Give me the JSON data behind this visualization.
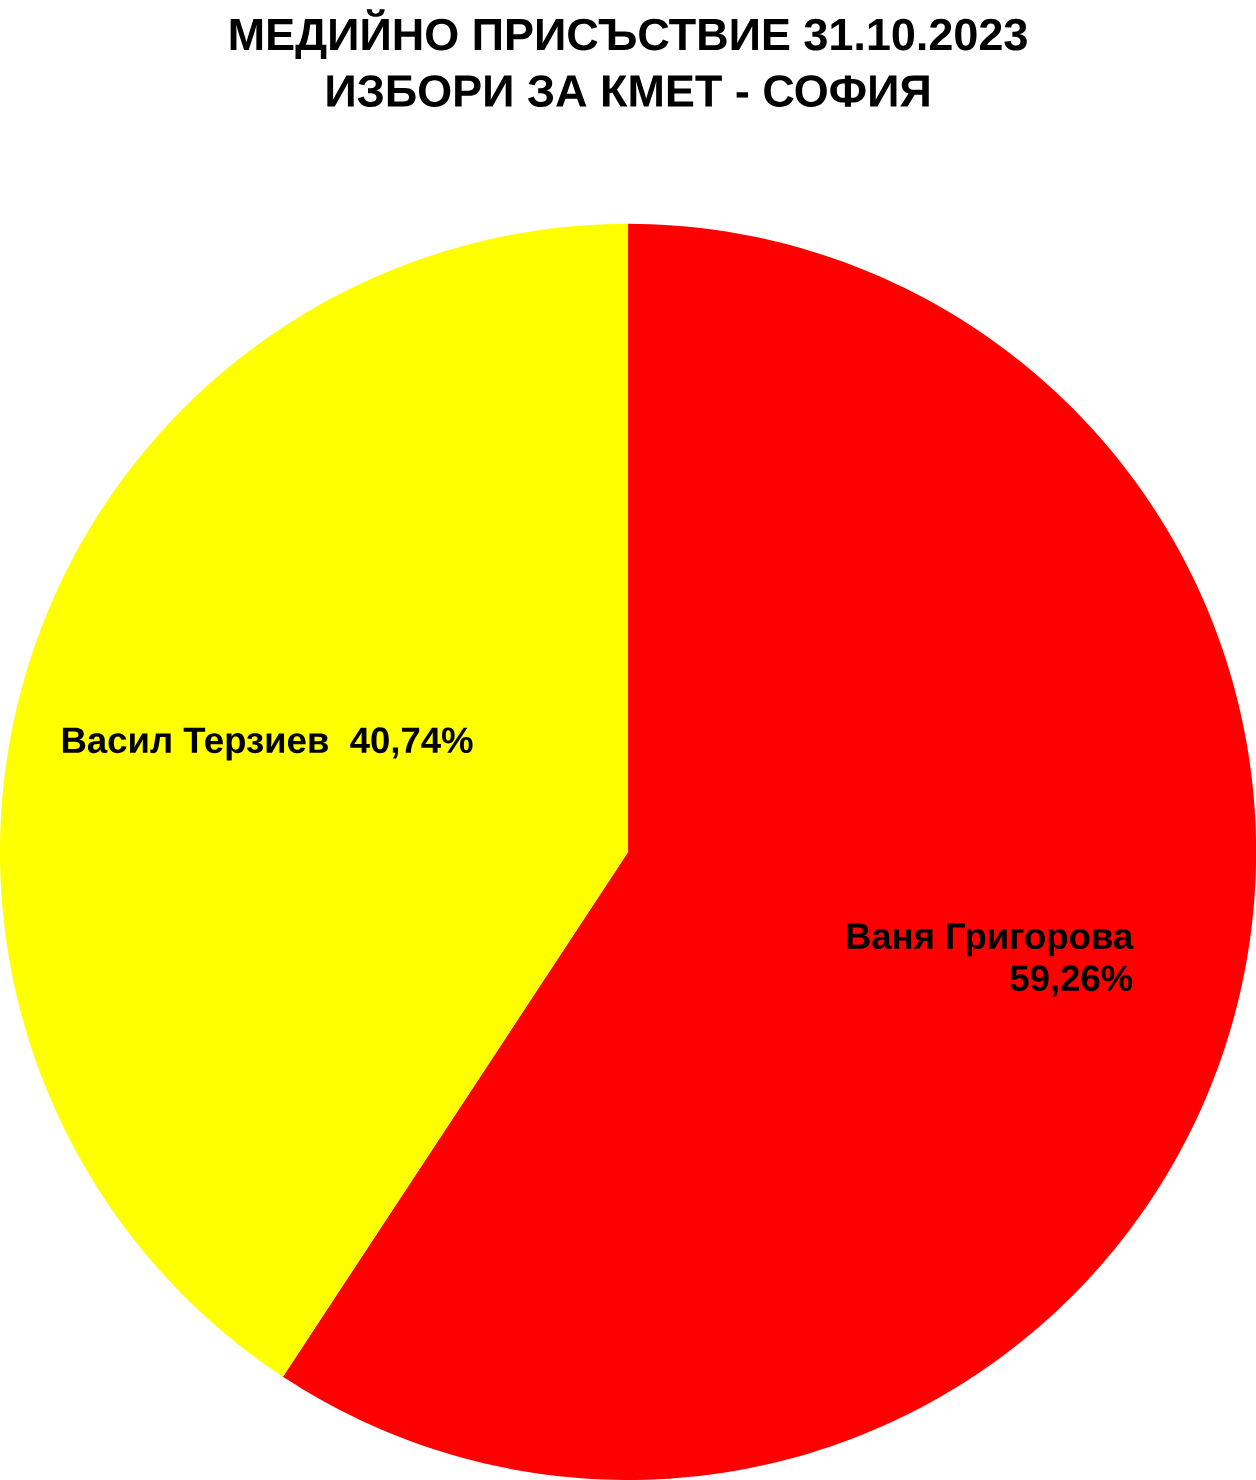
{
  "chart_data": {
    "type": "pie",
    "title": "МЕДИЙНО ПРИСЪСТВИЕ 31.10.2023",
    "subtitle": "ИЗБОРИ ЗА КМЕТ - СОФИЯ",
    "categories": [
      "Ваня Григорова",
      "Васил Терзиев"
    ],
    "values": [
      59.26,
      40.74
    ],
    "value_labels": [
      "59,26%",
      "40,74%"
    ],
    "colors": [
      "#ff0000",
      "#ffff00"
    ]
  }
}
